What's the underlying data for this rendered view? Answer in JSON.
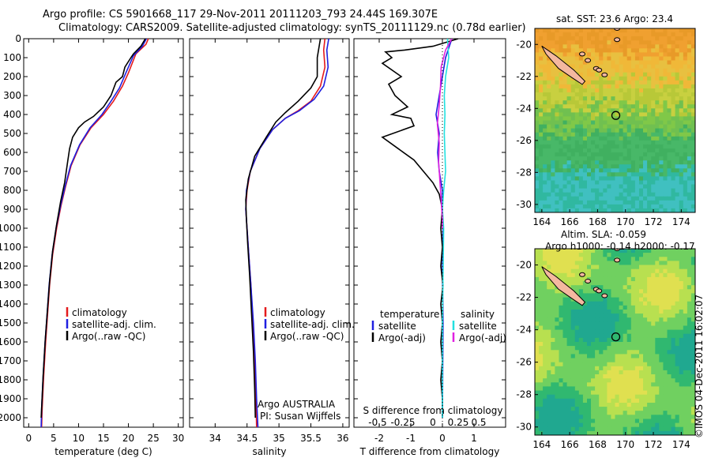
{
  "header": {
    "line1": "Argo profile: CS 5901668_117 29-Nov-2011 20111203_793 24.44S 169.307E",
    "line2": "Climatology: CARS2009. Satellite-adjusted climatology: synTS_20111129.nc (0.78d earlier)"
  },
  "footer_stamp": "©IMOS 04-Dec-2011 16:02:07",
  "colors": {
    "climatology": "#e41a1c",
    "satellite": "#1f1fe0",
    "argo": "#000000",
    "sal_satellite": "#22e0e0",
    "sal_argo": "#e020e0"
  },
  "chart_data": [
    {
      "type": "line",
      "id": "temperature",
      "xlabel": "temperature (deg C)",
      "ylabel": "",
      "xlim": [
        -1,
        31
      ],
      "ylim": [
        0,
        2050
      ],
      "xticks": [
        0,
        5,
        10,
        15,
        20,
        25,
        30
      ],
      "xticklabels": [
        "0",
        "5",
        "10",
        "15",
        "20",
        "25",
        "30"
      ],
      "yticks": [
        0,
        100,
        200,
        300,
        400,
        500,
        600,
        700,
        800,
        900,
        1000,
        1100,
        1200,
        1300,
        1400,
        1500,
        1600,
        1700,
        1800,
        1900,
        2000
      ],
      "yticklabels": [
        "0",
        "100",
        "200",
        "300",
        "400",
        "500",
        "600",
        "700",
        "800",
        "900",
        "1000",
        "1100",
        "1200",
        "1300",
        "1400",
        "1500",
        "1600",
        "1700",
        "1800",
        "1900",
        "2000"
      ],
      "legend": [
        {
          "label": "climatology",
          "color": "#e41a1c"
        },
        {
          "label": "satellite-adj. clim.",
          "color": "#1f1fe0"
        },
        {
          "label": "Argo(..raw -QC)",
          "color": "#000000"
        }
      ],
      "series": [
        {
          "name": "climatology",
          "color": "#e41a1c",
          "points": [
            [
              24,
              0
            ],
            [
              23.5,
              30
            ],
            [
              21.5,
              80
            ],
            [
              20,
              180
            ],
            [
              18.8,
              250
            ],
            [
              17,
              330
            ],
            [
              15,
              400
            ],
            [
              12.5,
              470
            ],
            [
              10.3,
              560
            ],
            [
              8.5,
              670
            ],
            [
              7.4,
              780
            ],
            [
              6.5,
              880
            ],
            [
              5.6,
              1000
            ],
            [
              4.8,
              1140
            ],
            [
              4.2,
              1300
            ],
            [
              3.8,
              1450
            ],
            [
              3.4,
              1600
            ],
            [
              3.0,
              1780
            ],
            [
              2.7,
              1950
            ],
            [
              2.6,
              2050
            ]
          ]
        },
        {
          "name": "satellite-adj. clim.",
          "color": "#1f1fe0",
          "points": [
            [
              23.6,
              0
            ],
            [
              22.8,
              40
            ],
            [
              21,
              90
            ],
            [
              19.5,
              180
            ],
            [
              18.2,
              260
            ],
            [
              16.5,
              330
            ],
            [
              14.7,
              400
            ],
            [
              12.3,
              470
            ],
            [
              10.2,
              560
            ],
            [
              8.4,
              670
            ],
            [
              7.3,
              780
            ],
            [
              6.4,
              880
            ],
            [
              5.5,
              1000
            ],
            [
              4.7,
              1140
            ],
            [
              4.1,
              1300
            ],
            [
              3.7,
              1450
            ],
            [
              3.3,
              1600
            ],
            [
              2.9,
              1780
            ],
            [
              2.6,
              1950
            ],
            [
              2.5,
              2050
            ]
          ]
        },
        {
          "name": "Argo(..raw -QC)",
          "color": "#000000",
          "points": [
            [
              23.4,
              0
            ],
            [
              22.5,
              40
            ],
            [
              21,
              80
            ],
            [
              20.5,
              100
            ],
            [
              19.3,
              150
            ],
            [
              18.8,
              200
            ],
            [
              17.5,
              230
            ],
            [
              16.5,
              300
            ],
            [
              15,
              360
            ],
            [
              13,
              410
            ],
            [
              11.2,
              440
            ],
            [
              10,
              470
            ],
            [
              8.8,
              520
            ],
            [
              8.2,
              580
            ],
            [
              7.8,
              650
            ],
            [
              7.2,
              760
            ],
            [
              6.4,
              860
            ],
            [
              5.6,
              980
            ],
            [
              4.8,
              1120
            ],
            [
              4.2,
              1280
            ],
            [
              3.7,
              1450
            ],
            [
              3.3,
              1600
            ],
            [
              2.9,
              1780
            ],
            [
              2.6,
              1950
            ],
            [
              2.5,
              2000
            ]
          ]
        }
      ]
    },
    {
      "type": "line",
      "id": "salinity",
      "xlabel": "salinity",
      "xlim": [
        33.6,
        36.1
      ],
      "ylim": [
        0,
        2050
      ],
      "xticks": [
        34,
        34.5,
        35,
        35.5,
        36
      ],
      "xticklabels": [
        "34",
        "34.5",
        "35",
        "35.5",
        "36"
      ],
      "legend": [
        {
          "label": "climatology",
          "color": "#e41a1c"
        },
        {
          "label": "satellite-adj. clim.",
          "color": "#1f1fe0"
        },
        {
          "label": "Argo(..raw -QC)",
          "color": "#000000"
        }
      ],
      "annotation": [
        "Argo AUSTRALIA",
        "PI: Susan Wijffels"
      ],
      "series": [
        {
          "name": "climatology",
          "color": "#e41a1c",
          "points": [
            [
              35.72,
              0
            ],
            [
              35.7,
              60
            ],
            [
              35.72,
              150
            ],
            [
              35.65,
              250
            ],
            [
              35.5,
              330
            ],
            [
              35.3,
              380
            ],
            [
              35.1,
              420
            ],
            [
              34.9,
              480
            ],
            [
              34.7,
              580
            ],
            [
              34.55,
              700
            ],
            [
              34.5,
              800
            ],
            [
              34.48,
              900
            ],
            [
              34.5,
              1000
            ],
            [
              34.53,
              1150
            ],
            [
              34.56,
              1300
            ],
            [
              34.59,
              1500
            ],
            [
              34.62,
              1700
            ],
            [
              34.64,
              1900
            ],
            [
              34.65,
              2050
            ]
          ]
        },
        {
          "name": "satellite-adj. clim.",
          "color": "#1f1fe0",
          "points": [
            [
              35.78,
              0
            ],
            [
              35.75,
              60
            ],
            [
              35.77,
              150
            ],
            [
              35.7,
              250
            ],
            [
              35.55,
              320
            ],
            [
              35.32,
              380
            ],
            [
              35.1,
              420
            ],
            [
              34.9,
              480
            ],
            [
              34.7,
              580
            ],
            [
              34.55,
              700
            ],
            [
              34.49,
              800
            ],
            [
              34.48,
              900
            ],
            [
              34.5,
              1000
            ],
            [
              34.53,
              1150
            ],
            [
              34.56,
              1300
            ],
            [
              34.6,
              1500
            ],
            [
              34.63,
              1700
            ],
            [
              34.65,
              1900
            ],
            [
              34.67,
              2050
            ]
          ]
        },
        {
          "name": "Argo(..raw -QC)",
          "color": "#000000",
          "points": [
            [
              35.65,
              0
            ],
            [
              35.6,
              100
            ],
            [
              35.6,
              200
            ],
            [
              35.5,
              260
            ],
            [
              35.3,
              330
            ],
            [
              35.1,
              390
            ],
            [
              34.95,
              440
            ],
            [
              34.8,
              520
            ],
            [
              34.62,
              620
            ],
            [
              34.52,
              740
            ],
            [
              34.48,
              850
            ],
            [
              34.49,
              950
            ],
            [
              34.51,
              1080
            ],
            [
              34.54,
              1250
            ],
            [
              34.57,
              1450
            ],
            [
              34.6,
              1650
            ],
            [
              34.62,
              1850
            ],
            [
              34.63,
              2000
            ]
          ]
        }
      ]
    },
    {
      "type": "line",
      "id": "difference",
      "xlabel": "T difference from climatology",
      "xlabel_top": "S difference from climatology",
      "xlim": [
        -2.8,
        2.0
      ],
      "ylim": [
        0,
        2050
      ],
      "xticks": [
        -2,
        -1,
        0,
        1
      ],
      "xticklabels": [
        "-2",
        "-1",
        "0",
        "1"
      ],
      "s_xticks": [
        -0.5,
        -0.25,
        0,
        0.25,
        0.5
      ],
      "s_xticklabels": [
        "-0.5",
        "-0.25",
        "0",
        "0.25",
        "0.5"
      ],
      "legend_temperature": {
        "title": "temperature",
        "items": [
          {
            "label": "satellite",
            "color": "#1f1fe0"
          },
          {
            "label": "Argo(-adj)",
            "color": "#000000"
          }
        ]
      },
      "legend_salinity": {
        "title": "salinity",
        "items": [
          {
            "label": "satellite",
            "color": "#22e0e0"
          },
          {
            "label": "Argo(-adj)",
            "color": "#e020e0"
          }
        ]
      },
      "series": [
        {
          "name": "temperature satellite",
          "color": "#1f1fe0",
          "points": [
            [
              0.3,
              0
            ],
            [
              0.2,
              50
            ],
            [
              0.1,
              100
            ],
            [
              0,
              200
            ],
            [
              -0.1,
              300
            ],
            [
              -0.2,
              400
            ],
            [
              -0.1,
              500
            ],
            [
              -0.15,
              600
            ],
            [
              -0.1,
              700
            ],
            [
              0,
              800
            ],
            [
              0,
              900
            ],
            [
              0.02,
              1000
            ],
            [
              0,
              1200
            ],
            [
              0.02,
              1500
            ],
            [
              0,
              2000
            ]
          ]
        },
        {
          "name": "temperature Argo(-adj)",
          "color": "#000000",
          "points": [
            [
              0.5,
              0
            ],
            [
              -0.3,
              40
            ],
            [
              -1.2,
              60
            ],
            [
              -1.8,
              70
            ],
            [
              -1.6,
              100
            ],
            [
              -1.9,
              130
            ],
            [
              -1.3,
              200
            ],
            [
              -1.7,
              240
            ],
            [
              -1.5,
              300
            ],
            [
              -1.1,
              360
            ],
            [
              -1.6,
              400
            ],
            [
              -1.0,
              420
            ],
            [
              -0.9,
              460
            ],
            [
              -1.9,
              520
            ],
            [
              -1.4,
              580
            ],
            [
              -0.9,
              640
            ],
            [
              -0.6,
              700
            ],
            [
              -0.3,
              760
            ],
            [
              -0.1,
              820
            ],
            [
              0,
              900
            ],
            [
              -0.05,
              1000
            ],
            [
              0,
              1100
            ],
            [
              -0.05,
              1200
            ],
            [
              0.02,
              1300
            ],
            [
              -0.05,
              1400
            ],
            [
              0,
              1500
            ],
            [
              -0.05,
              1600
            ],
            [
              0,
              1700
            ],
            [
              -0.05,
              1800
            ],
            [
              0,
              1900
            ],
            [
              0,
              2000
            ]
          ]
        },
        {
          "name": "salinity satellite",
          "color": "#22e0e0",
          "points": [
            [
              0.08,
              0
            ],
            [
              0.1,
              100
            ],
            [
              0.05,
              200
            ],
            [
              0.03,
              300
            ],
            [
              0.04,
              400
            ],
            [
              0.03,
              500
            ],
            [
              0.04,
              600
            ],
            [
              0.05,
              700
            ],
            [
              0.02,
              800
            ],
            [
              0,
              900
            ],
            [
              0.02,
              1000
            ],
            [
              0,
              1500
            ],
            [
              0,
              2000
            ]
          ]
        },
        {
          "name": "salinity Argo(-adj)",
          "color": "#e020e0",
          "points": [
            [
              0.15,
              0
            ],
            [
              0.05,
              60
            ],
            [
              -0.02,
              150
            ],
            [
              -0.03,
              250
            ],
            [
              -0.05,
              350
            ],
            [
              -0.08,
              450
            ],
            [
              -0.05,
              550
            ],
            [
              -0.06,
              650
            ],
            [
              -0.04,
              750
            ],
            [
              -0.02,
              850
            ],
            [
              0,
              950
            ],
            [
              0,
              1000
            ]
          ]
        }
      ]
    },
    {
      "type": "heatmap",
      "id": "sst_map",
      "title": "sat. SST: 23.6 Argo: 23.4",
      "xlim": [
        163.5,
        175
      ],
      "ylim": [
        -30.5,
        -19
      ],
      "xticks": [
        164,
        166,
        168,
        170,
        172,
        174
      ],
      "xticklabels": [
        "164",
        "166",
        "168",
        "170",
        "172",
        "174"
      ],
      "yticks": [
        -20,
        -22,
        -24,
        -26,
        -28,
        -30
      ],
      "yticklabels": [
        "-20",
        "-22",
        "-24",
        "-26",
        "-28",
        "-30"
      ],
      "argo_marker": [
        169.307,
        -24.44
      ]
    },
    {
      "type": "heatmap",
      "id": "sla_map",
      "title": "Altim. SLA: -0.059",
      "subtitle": "Argo h1000: -0.14 h2000: -0.17",
      "xlim": [
        163.5,
        175
      ],
      "ylim": [
        -30.5,
        -19
      ],
      "xticks": [
        164,
        166,
        168,
        170,
        172,
        174
      ],
      "xticklabels": [
        "164",
        "166",
        "168",
        "170",
        "172",
        "174"
      ],
      "yticks": [
        -20,
        -22,
        -24,
        -26,
        -28,
        -30
      ],
      "yticklabels": [
        "-20",
        "-22",
        "-24",
        "-26",
        "-28",
        "-30"
      ],
      "argo_marker": [
        169.307,
        -24.44
      ]
    }
  ]
}
